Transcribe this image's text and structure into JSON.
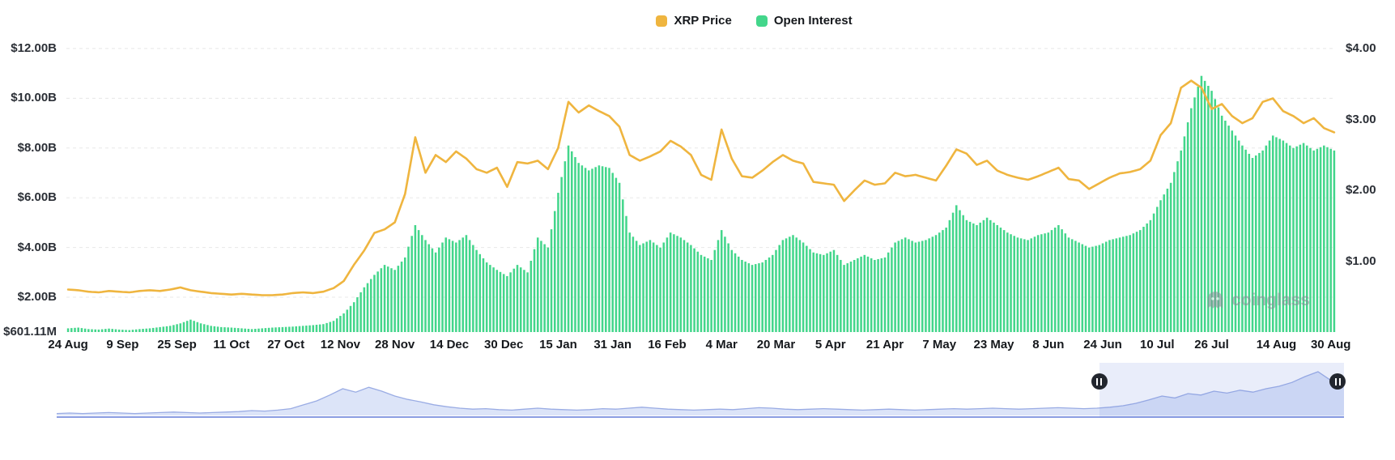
{
  "legend": [
    {
      "label": "XRP Price",
      "color": "#efb53f"
    },
    {
      "label": "Open Interest",
      "color": "#43d68b"
    }
  ],
  "watermark": {
    "text": "coinglass",
    "icon": "ghost-icon"
  },
  "chart_data": {
    "type": "bar+line",
    "title": "",
    "x_tick_labels": [
      "24 Aug",
      "9 Sep",
      "25 Sep",
      "11 Oct",
      "27 Oct",
      "12 Nov",
      "28 Nov",
      "14 Dec",
      "30 Dec",
      "15 Jan",
      "31 Jan",
      "16 Feb",
      "4 Mar",
      "20 Mar",
      "5 Apr",
      "21 Apr",
      "7 May",
      "23 May",
      "8 Jun",
      "24 Jun",
      "10 Jul",
      "26 Jul",
      "14 Aug",
      "30 Aug"
    ],
    "x_tick_days": [
      0,
      16,
      32,
      48,
      64,
      80,
      96,
      112,
      128,
      144,
      160,
      176,
      192,
      208,
      224,
      240,
      256,
      272,
      288,
      304,
      320,
      336,
      355,
      371
    ],
    "x_domain_days": [
      0,
      372
    ],
    "sample_interval_days": 3,
    "grid": "horizontal-dashed",
    "legend_position": "top-center",
    "left_axis": {
      "min": 0.60111,
      "max": 12.16,
      "min_label": "$601.11M",
      "ticks": [
        {
          "label": "$12.00B",
          "value": 12
        },
        {
          "label": "$10.00B",
          "value": 10
        },
        {
          "label": "$8.00B",
          "value": 8
        },
        {
          "label": "$6.00B",
          "value": 6
        },
        {
          "label": "$4.00B",
          "value": 4
        },
        {
          "label": "$2.00B",
          "value": 2
        }
      ]
    },
    "right_axis": {
      "min": 0,
      "max": 4.06,
      "ticks": [
        {
          "label": "$4.00",
          "value": 4
        },
        {
          "label": "$3.00",
          "value": 3
        },
        {
          "label": "$2.00",
          "value": 2
        },
        {
          "label": "$1.00",
          "value": 1
        }
      ]
    },
    "series": [
      {
        "name": "Open Interest",
        "type": "bar",
        "axis": "left",
        "unit": "USD billions",
        "color": "#43d68b",
        "values": [
          0.75,
          0.78,
          0.72,
          0.7,
          0.74,
          0.7,
          0.68,
          0.72,
          0.75,
          0.8,
          0.85,
          0.95,
          1.1,
          0.95,
          0.85,
          0.8,
          0.78,
          0.75,
          0.72,
          0.75,
          0.78,
          0.8,
          0.82,
          0.85,
          0.88,
          0.92,
          1.05,
          1.35,
          1.8,
          2.4,
          2.9,
          3.3,
          3.1,
          3.6,
          4.9,
          4.3,
          3.8,
          4.4,
          4.2,
          4.5,
          3.9,
          3.4,
          3.1,
          2.85,
          3.3,
          3.0,
          4.4,
          4.0,
          6.2,
          8.1,
          7.4,
          7.1,
          7.3,
          7.2,
          6.6,
          4.6,
          4.1,
          4.3,
          4.0,
          4.6,
          4.4,
          4.1,
          3.7,
          3.5,
          4.7,
          3.9,
          3.5,
          3.3,
          3.4,
          3.7,
          4.3,
          4.5,
          4.2,
          3.8,
          3.7,
          3.9,
          3.3,
          3.5,
          3.7,
          3.5,
          3.6,
          4.2,
          4.4,
          4.2,
          4.3,
          4.5,
          4.8,
          5.7,
          5.1,
          4.9,
          5.2,
          4.9,
          4.6,
          4.4,
          4.3,
          4.5,
          4.6,
          4.9,
          4.4,
          4.2,
          4.0,
          4.1,
          4.3,
          4.4,
          4.5,
          4.7,
          5.1,
          5.9,
          6.6,
          7.9,
          9.6,
          10.9,
          10.3,
          9.3,
          8.7,
          8.1,
          7.6,
          7.9,
          8.5,
          8.3,
          8.0,
          8.2,
          7.9,
          8.1,
          7.9
        ]
      },
      {
        "name": "XRP Price",
        "type": "line",
        "axis": "right",
        "unit": "USD",
        "color": "#efb53f",
        "values": [
          0.6,
          0.59,
          0.57,
          0.56,
          0.58,
          0.57,
          0.56,
          0.58,
          0.59,
          0.58,
          0.6,
          0.63,
          0.59,
          0.57,
          0.55,
          0.54,
          0.53,
          0.54,
          0.53,
          0.52,
          0.52,
          0.53,
          0.55,
          0.56,
          0.55,
          0.57,
          0.62,
          0.72,
          0.95,
          1.15,
          1.4,
          1.45,
          1.55,
          1.95,
          2.75,
          2.25,
          2.5,
          2.4,
          2.55,
          2.45,
          2.3,
          2.25,
          2.32,
          2.05,
          2.4,
          2.38,
          2.42,
          2.3,
          2.6,
          3.25,
          3.1,
          3.2,
          3.12,
          3.05,
          2.9,
          2.5,
          2.42,
          2.48,
          2.55,
          2.7,
          2.62,
          2.5,
          2.22,
          2.15,
          2.86,
          2.45,
          2.2,
          2.18,
          2.28,
          2.4,
          2.5,
          2.42,
          2.38,
          2.12,
          2.1,
          2.08,
          1.85,
          2.0,
          2.14,
          2.08,
          2.1,
          2.25,
          2.2,
          2.22,
          2.18,
          2.14,
          2.35,
          2.58,
          2.52,
          2.36,
          2.42,
          2.28,
          2.22,
          2.18,
          2.15,
          2.2,
          2.26,
          2.32,
          2.16,
          2.14,
          2.02,
          2.1,
          2.18,
          2.24,
          2.26,
          2.3,
          2.42,
          2.78,
          2.95,
          3.45,
          3.55,
          3.45,
          3.15,
          3.22,
          3.05,
          2.95,
          3.02,
          3.25,
          3.3,
          3.12,
          3.05,
          2.95,
          3.02,
          2.88,
          2.82
        ]
      }
    ]
  },
  "navigator": {
    "selection_start_pct": 81,
    "selection_end_pct": 100,
    "handle_icon": "pause-icon",
    "area_color": "#dce4f8",
    "line_color": "#9aace4",
    "values": [
      0.04,
      0.05,
      0.04,
      0.05,
      0.06,
      0.05,
      0.04,
      0.05,
      0.06,
      0.07,
      0.06,
      0.05,
      0.06,
      0.07,
      0.08,
      0.1,
      0.09,
      0.11,
      0.14,
      0.22,
      0.3,
      0.42,
      0.55,
      0.48,
      0.58,
      0.5,
      0.4,
      0.33,
      0.28,
      0.22,
      0.18,
      0.15,
      0.13,
      0.14,
      0.12,
      0.11,
      0.13,
      0.15,
      0.13,
      0.12,
      0.11,
      0.12,
      0.14,
      0.13,
      0.15,
      0.17,
      0.15,
      0.13,
      0.12,
      0.11,
      0.12,
      0.13,
      0.12,
      0.14,
      0.16,
      0.15,
      0.13,
      0.12,
      0.13,
      0.14,
      0.13,
      0.12,
      0.11,
      0.12,
      0.13,
      0.12,
      0.11,
      0.12,
      0.13,
      0.14,
      0.13,
      0.14,
      0.15,
      0.14,
      0.13,
      0.14,
      0.15,
      0.16,
      0.15,
      0.14,
      0.15,
      0.17,
      0.2,
      0.25,
      0.32,
      0.4,
      0.36,
      0.45,
      0.42,
      0.5,
      0.46,
      0.52,
      0.48,
      0.55,
      0.6,
      0.68,
      0.8,
      0.9,
      0.72,
      0.78
    ]
  }
}
